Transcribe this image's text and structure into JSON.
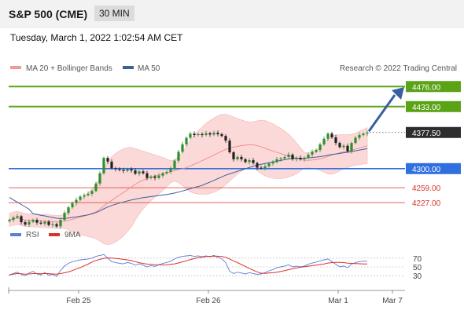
{
  "header": {
    "title": "S&P 500 (CME)",
    "interval": "30 MIN"
  },
  "datetime": "Tuesday, March 1, 2022 1:02:54 AM CET",
  "colors": {
    "green": "#5aa316",
    "blue": "#2f6fe0",
    "red": "#d8322b",
    "dark": "#2d2d2d",
    "candle_up": "#2f8f2f",
    "candle_down": "#222222",
    "bands": "#f9cccc",
    "ma50": "#3a5f9e",
    "rsi": "#5b7fd6",
    "rsi_ma": "#d8322b"
  },
  "legend": {
    "ma20": "MA 20 + Bollinger Bands",
    "ma50": "MA 50",
    "copyright": "Research © 2022 Trading Central",
    "rsi": "RSI",
    "rsi_ma": "9MA"
  },
  "chart_data": [
    {
      "type": "candlestick",
      "ylim": [
        4170,
        4500
      ],
      "x_ticks": [
        "Feb 25",
        "Feb 26",
        "Mar 1",
        "Mar 7"
      ],
      "closes": [
        4190,
        4195,
        4198,
        4185,
        4180,
        4186,
        4190,
        4184,
        4182,
        4186,
        4179,
        4181,
        4176,
        4190,
        4205,
        4217,
        4226,
        4233,
        4240,
        4243,
        4246,
        4252,
        4268,
        4290,
        4323,
        4315,
        4301,
        4299,
        4297,
        4295,
        4299,
        4296,
        4289,
        4294,
        4290,
        4280,
        4283,
        4280,
        4285,
        4290,
        4293,
        4300,
        4317,
        4336,
        4352,
        4366,
        4375,
        4372,
        4374,
        4372,
        4376,
        4373,
        4377,
        4374,
        4370,
        4360,
        4335,
        4320,
        4325,
        4320,
        4314,
        4318,
        4312,
        4302,
        4301,
        4305,
        4311,
        4314,
        4320,
        4322,
        4325,
        4330,
        4320,
        4323,
        4320,
        4323,
        4330,
        4336,
        4340,
        4352,
        4364,
        4375,
        4367,
        4355,
        4346,
        4349,
        4337,
        4355,
        4366,
        4372,
        4375,
        4377.5
      ],
      "levels": [
        {
          "value": 4476.0,
          "label": "4476.00",
          "role": "resistance"
        },
        {
          "value": 4433.0,
          "label": "4433.00",
          "role": "resistance"
        },
        {
          "value": 4377.5,
          "label": "4377.50",
          "role": "last"
        },
        {
          "value": 4300.0,
          "label": "4300.00",
          "role": "pivot"
        },
        {
          "value": 4259.0,
          "label": "4259.00",
          "role": "support"
        },
        {
          "value": 4227.0,
          "label": "4227.00",
          "role": "support"
        }
      ]
    },
    {
      "type": "line",
      "name": "RSI",
      "ylim": [
        0,
        100
      ],
      "y_ticks": [
        70,
        50,
        30
      ],
      "rsi_start": 30,
      "rsi": [
        32,
        35,
        38,
        33,
        30,
        36,
        40,
        34,
        32,
        37,
        31,
        33,
        28,
        42,
        52,
        58,
        62,
        64,
        66,
        67,
        68,
        70,
        74,
        76,
        78,
        70,
        62,
        60,
        58,
        57,
        60,
        58,
        54,
        57,
        54,
        50,
        53,
        51,
        55,
        58,
        60,
        63,
        68,
        72,
        74,
        75,
        76,
        74,
        75,
        73,
        75,
        73,
        76,
        72,
        68,
        60,
        40,
        35,
        38,
        36,
        34,
        37,
        35,
        33,
        34,
        37,
        41,
        44,
        48,
        50,
        52,
        55,
        50,
        52,
        50,
        52,
        56,
        59,
        61,
        64,
        66,
        68,
        62,
        56,
        50,
        52,
        48,
        56,
        60,
        62,
        63,
        63
      ]
    }
  ]
}
